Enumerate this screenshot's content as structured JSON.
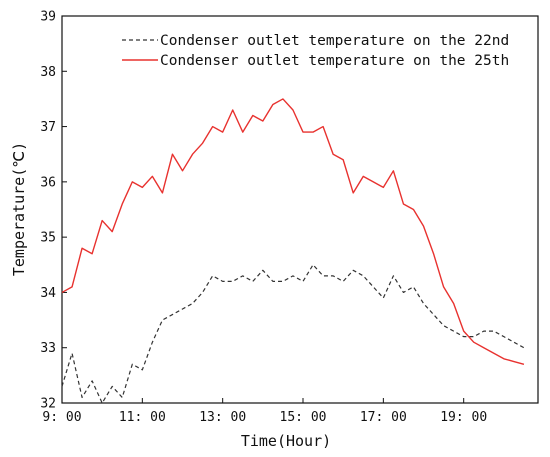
{
  "chart_data": {
    "type": "line",
    "xlabel": "Time(Hour)",
    "ylabel": "Temperature(℃)",
    "xlim": [
      9.0,
      20.85
    ],
    "ylim": [
      32,
      39
    ],
    "x_ticks": [
      {
        "value": 9,
        "label": "9: 00"
      },
      {
        "value": 11,
        "label": "11: 00"
      },
      {
        "value": 13,
        "label": "13: 00"
      },
      {
        "value": 15,
        "label": "15: 00"
      },
      {
        "value": 17,
        "label": "17: 00"
      },
      {
        "value": 19,
        "label": "19: 00"
      }
    ],
    "y_ticks": [
      32,
      33,
      34,
      35,
      36,
      37,
      38,
      39
    ],
    "legend_position": "top-right",
    "grid": false,
    "series": [
      {
        "name": "Condenser outlet temperature on the 22nd",
        "color": "#333333",
        "style": "dashed",
        "x": [
          9.0,
          9.25,
          9.5,
          9.75,
          10.0,
          10.25,
          10.5,
          10.75,
          11.0,
          11.25,
          11.5,
          11.75,
          12.0,
          12.25,
          12.5,
          12.75,
          13.0,
          13.25,
          13.5,
          13.75,
          14.0,
          14.25,
          14.5,
          14.75,
          15.0,
          15.25,
          15.5,
          15.75,
          16.0,
          16.25,
          16.5,
          16.75,
          17.0,
          17.25,
          17.5,
          17.75,
          18.0,
          18.25,
          18.5,
          18.75,
          19.0,
          19.25,
          19.5,
          19.75,
          20.0,
          20.25,
          20.5
        ],
        "y": [
          32.3,
          32.9,
          32.1,
          32.4,
          32.0,
          32.3,
          32.1,
          32.7,
          32.6,
          33.1,
          33.5,
          33.6,
          33.7,
          33.8,
          34.0,
          34.3,
          34.2,
          34.2,
          34.3,
          34.2,
          34.4,
          34.2,
          34.2,
          34.3,
          34.2,
          34.5,
          34.3,
          34.3,
          34.2,
          34.4,
          34.3,
          34.1,
          33.9,
          34.3,
          34.0,
          34.1,
          33.8,
          33.6,
          33.4,
          33.3,
          33.2,
          33.2,
          33.3,
          33.3,
          33.2,
          33.1,
          33.0
        ]
      },
      {
        "name": "Condenser outlet temperature on the 25th",
        "color": "#e8322f",
        "style": "solid",
        "x": [
          9.0,
          9.25,
          9.5,
          9.75,
          10.0,
          10.25,
          10.5,
          10.75,
          11.0,
          11.25,
          11.5,
          11.75,
          12.0,
          12.25,
          12.5,
          12.75,
          13.0,
          13.25,
          13.5,
          13.75,
          14.0,
          14.25,
          14.5,
          14.75,
          15.0,
          15.25,
          15.5,
          15.75,
          16.0,
          16.25,
          16.5,
          16.75,
          17.0,
          17.25,
          17.5,
          17.75,
          18.0,
          18.25,
          18.5,
          18.75,
          19.0,
          19.25,
          19.5,
          19.75,
          20.0,
          20.25,
          20.5
        ],
        "y": [
          34.0,
          34.1,
          34.8,
          34.7,
          35.3,
          35.1,
          35.6,
          36.0,
          35.9,
          36.1,
          35.8,
          36.5,
          36.2,
          36.5,
          36.7,
          37.0,
          36.9,
          37.3,
          36.9,
          37.2,
          37.1,
          37.4,
          37.5,
          37.3,
          36.9,
          36.9,
          37.0,
          36.5,
          36.4,
          35.8,
          36.1,
          36.0,
          35.9,
          36.2,
          35.6,
          35.5,
          35.2,
          34.7,
          34.1,
          33.8,
          33.3,
          33.1,
          33.0,
          32.9,
          32.8,
          32.75,
          32.7
        ]
      }
    ]
  }
}
